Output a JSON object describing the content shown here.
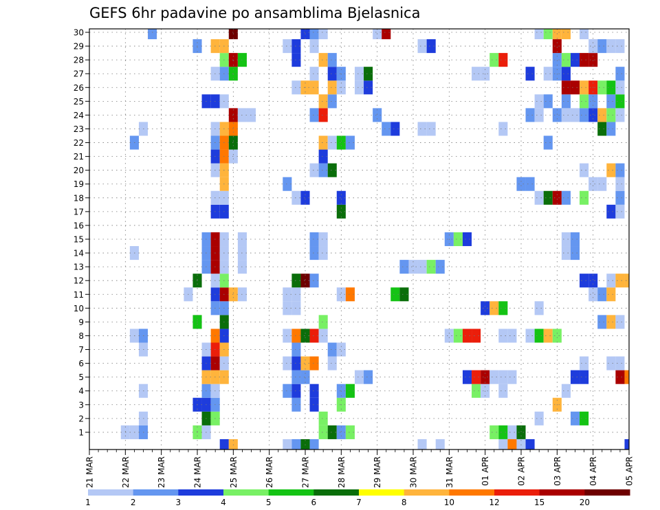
{
  "chart_data": {
    "type": "heatmap",
    "title": "GEFS 6hr padavine po ansamblima Bjelasnica",
    "xlabel": "",
    "ylabel": "",
    "x_tick_labels": [
      "21 MAR",
      "22 MAR",
      "23 MAR",
      "24 MAR",
      "25 MAR",
      "26 MAR",
      "27 MAR",
      "28 MAR",
      "29 MAR",
      "30 MAR",
      "31 MAR",
      "01 APR",
      "02 APR",
      "03 APR",
      "04 APR",
      "05 APR"
    ],
    "y_tick_labels": [
      "1",
      "2",
      "3",
      "4",
      "5",
      "6",
      "7",
      "8",
      "9",
      "10",
      "11",
      "12",
      "13",
      "14",
      "15",
      "16",
      "17",
      "18",
      "19",
      "20",
      "21",
      "22",
      "23",
      "24",
      "25",
      "26",
      "27",
      "28",
      "29",
      "30"
    ],
    "x_unit": "6-hour step (4 per day), step 0 = 21 MAR 00Z",
    "x_range": [
      0,
      60
    ],
    "y_range": [
      0,
      30
    ],
    "grid": true,
    "legend": {
      "placement": "bottom",
      "labels": [
        "1",
        "2",
        "3",
        "4",
        "5",
        "6",
        "7",
        "8",
        "10",
        "12",
        "15",
        "20"
      ],
      "bins": [
        {
          "min": 1,
          "max": 2,
          "color": "#b4c8f5"
        },
        {
          "min": 2,
          "max": 3,
          "color": "#6496f0"
        },
        {
          "min": 3,
          "max": 4,
          "color": "#1e3cdc"
        },
        {
          "min": 4,
          "max": 5,
          "color": "#78f064"
        },
        {
          "min": 5,
          "max": 6,
          "color": "#14c314"
        },
        {
          "min": 6,
          "max": 7,
          "color": "#0a6e0a"
        },
        {
          "min": 7,
          "max": 8,
          "color": "#ffff00"
        },
        {
          "min": 8,
          "max": 10,
          "color": "#ffb43c"
        },
        {
          "min": 10,
          "max": 12,
          "color": "#ff7800"
        },
        {
          "min": 12,
          "max": 15,
          "color": "#eb1e0a"
        },
        {
          "min": 15,
          "max": 20,
          "color": "#aa0000"
        },
        {
          "min": 20,
          "max": null,
          "color": "#6e0000"
        }
      ]
    },
    "cells": [
      [
        4,
        1,
        1
      ],
      [
        5,
        1,
        1
      ],
      [
        6,
        1,
        2
      ],
      [
        12,
        1,
        4
      ],
      [
        13,
        1,
        1
      ],
      [
        26,
        1,
        4
      ],
      [
        27,
        1,
        6
      ],
      [
        28,
        1,
        2
      ],
      [
        29,
        1,
        4
      ],
      [
        45,
        1,
        4
      ],
      [
        46,
        1,
        5
      ],
      [
        47,
        1,
        1
      ],
      [
        48,
        1,
        6
      ],
      [
        6,
        2,
        1
      ],
      [
        13,
        2,
        6
      ],
      [
        14,
        2,
        4
      ],
      [
        26,
        2,
        4
      ],
      [
        50,
        2,
        1
      ],
      [
        54,
        2,
        2
      ],
      [
        55,
        2,
        5
      ],
      [
        12,
        3,
        3
      ],
      [
        13,
        3,
        3
      ],
      [
        14,
        3,
        2
      ],
      [
        23,
        3,
        2
      ],
      [
        25,
        3,
        3
      ],
      [
        28,
        3,
        4
      ],
      [
        52,
        3,
        8
      ],
      [
        6,
        4,
        1
      ],
      [
        13,
        4,
        2
      ],
      [
        14,
        4,
        1
      ],
      [
        22,
        4,
        2
      ],
      [
        23,
        4,
        3
      ],
      [
        25,
        4,
        3
      ],
      [
        28,
        4,
        2
      ],
      [
        29,
        4,
        5
      ],
      [
        43,
        4,
        4
      ],
      [
        44,
        4,
        1
      ],
      [
        46,
        4,
        1
      ],
      [
        53,
        4,
        1
      ],
      [
        13,
        5,
        9
      ],
      [
        14,
        5,
        9
      ],
      [
        15,
        5,
        9
      ],
      [
        23,
        5,
        2
      ],
      [
        24,
        5,
        2
      ],
      [
        30,
        5,
        1
      ],
      [
        31,
        5,
        2
      ],
      [
        42,
        5,
        3
      ],
      [
        43,
        5,
        12
      ],
      [
        44,
        5,
        15
      ],
      [
        45,
        5,
        1
      ],
      [
        46,
        5,
        1
      ],
      [
        47,
        5,
        1
      ],
      [
        54,
        5,
        3
      ],
      [
        55,
        5,
        3
      ],
      [
        59,
        5,
        15
      ],
      [
        60,
        5,
        10
      ],
      [
        13,
        6,
        3
      ],
      [
        14,
        6,
        15
      ],
      [
        15,
        6,
        1
      ],
      [
        22,
        6,
        1
      ],
      [
        23,
        6,
        3
      ],
      [
        24,
        6,
        9
      ],
      [
        25,
        6,
        10
      ],
      [
        27,
        6,
        1
      ],
      [
        55,
        6,
        1
      ],
      [
        58,
        6,
        1
      ],
      [
        59,
        6,
        1
      ],
      [
        6,
        7,
        1
      ],
      [
        13,
        7,
        1
      ],
      [
        14,
        7,
        12
      ],
      [
        15,
        7,
        8
      ],
      [
        23,
        7,
        2
      ],
      [
        27,
        7,
        2
      ],
      [
        28,
        7,
        1
      ],
      [
        5,
        8,
        1
      ],
      [
        6,
        8,
        2
      ],
      [
        14,
        8,
        10
      ],
      [
        15,
        8,
        3
      ],
      [
        22,
        8,
        1
      ],
      [
        23,
        8,
        10
      ],
      [
        24,
        8,
        6
      ],
      [
        25,
        8,
        12
      ],
      [
        26,
        8,
        1
      ],
      [
        40,
        8,
        1
      ],
      [
        41,
        8,
        4
      ],
      [
        42,
        8,
        12
      ],
      [
        43,
        8,
        12
      ],
      [
        46,
        8,
        1
      ],
      [
        47,
        8,
        1
      ],
      [
        49,
        8,
        1
      ],
      [
        50,
        8,
        5
      ],
      [
        51,
        8,
        9
      ],
      [
        52,
        8,
        4
      ],
      [
        12,
        9,
        5
      ],
      [
        15,
        9,
        6
      ],
      [
        26,
        9,
        4
      ],
      [
        57,
        9,
        2
      ],
      [
        58,
        9,
        8
      ],
      [
        59,
        9,
        1
      ],
      [
        14,
        10,
        2
      ],
      [
        15,
        10,
        2
      ],
      [
        22,
        10,
        1
      ],
      [
        23,
        10,
        1
      ],
      [
        44,
        10,
        3
      ],
      [
        45,
        10,
        9
      ],
      [
        46,
        10,
        5
      ],
      [
        50,
        10,
        1
      ],
      [
        11,
        11,
        1
      ],
      [
        14,
        11,
        3
      ],
      [
        15,
        11,
        15
      ],
      [
        16,
        11,
        9
      ],
      [
        17,
        11,
        1
      ],
      [
        22,
        11,
        1
      ],
      [
        23,
        11,
        1
      ],
      [
        28,
        11,
        1
      ],
      [
        29,
        11,
        10
      ],
      [
        34,
        11,
        5
      ],
      [
        35,
        11,
        6
      ],
      [
        56,
        11,
        1
      ],
      [
        57,
        11,
        2
      ],
      [
        58,
        11,
        8
      ],
      [
        12,
        12,
        6
      ],
      [
        14,
        12,
        1
      ],
      [
        15,
        12,
        4
      ],
      [
        23,
        12,
        6
      ],
      [
        24,
        12,
        20
      ],
      [
        25,
        12,
        2
      ],
      [
        55,
        12,
        3
      ],
      [
        56,
        12,
        3
      ],
      [
        58,
        12,
        1
      ],
      [
        59,
        12,
        9
      ],
      [
        60,
        12,
        8
      ],
      [
        13,
        13,
        2
      ],
      [
        14,
        13,
        15
      ],
      [
        15,
        13,
        1
      ],
      [
        17,
        13,
        1
      ],
      [
        35,
        13,
        2
      ],
      [
        36,
        13,
        1
      ],
      [
        37,
        13,
        1
      ],
      [
        38,
        13,
        4
      ],
      [
        39,
        13,
        2
      ],
      [
        5,
        14,
        1
      ],
      [
        13,
        14,
        2
      ],
      [
        14,
        14,
        15
      ],
      [
        15,
        14,
        1
      ],
      [
        17,
        14,
        1
      ],
      [
        25,
        14,
        2
      ],
      [
        26,
        14,
        1
      ],
      [
        53,
        14,
        1
      ],
      [
        54,
        14,
        2
      ],
      [
        13,
        15,
        2
      ],
      [
        14,
        15,
        15
      ],
      [
        15,
        15,
        1
      ],
      [
        17,
        15,
        1
      ],
      [
        25,
        15,
        2
      ],
      [
        26,
        15,
        1
      ],
      [
        40,
        15,
        2
      ],
      [
        41,
        15,
        4
      ],
      [
        42,
        15,
        3
      ],
      [
        53,
        15,
        1
      ],
      [
        54,
        15,
        2
      ],
      [
        14,
        17,
        3
      ],
      [
        15,
        17,
        3
      ],
      [
        28,
        17,
        6
      ],
      [
        58,
        17,
        3
      ],
      [
        59,
        17,
        1
      ],
      [
        14,
        18,
        1
      ],
      [
        15,
        18,
        1
      ],
      [
        23,
        18,
        1
      ],
      [
        24,
        18,
        3
      ],
      [
        28,
        18,
        3
      ],
      [
        50,
        18,
        1
      ],
      [
        51,
        18,
        6
      ],
      [
        52,
        18,
        15
      ],
      [
        53,
        18,
        2
      ],
      [
        55,
        18,
        4
      ],
      [
        59,
        18,
        2
      ],
      [
        15,
        19,
        9
      ],
      [
        22,
        19,
        2
      ],
      [
        48,
        19,
        2
      ],
      [
        49,
        19,
        2
      ],
      [
        56,
        19,
        1
      ],
      [
        57,
        19,
        1
      ],
      [
        59,
        19,
        1
      ],
      [
        14,
        20,
        1
      ],
      [
        15,
        20,
        9
      ],
      [
        25,
        20,
        1
      ],
      [
        26,
        20,
        2
      ],
      [
        27,
        20,
        6
      ],
      [
        55,
        20,
        1
      ],
      [
        58,
        20,
        9
      ],
      [
        59,
        20,
        2
      ],
      [
        14,
        21,
        3
      ],
      [
        15,
        21,
        10
      ],
      [
        16,
        21,
        1
      ],
      [
        26,
        21,
        3
      ],
      [
        5,
        22,
        2
      ],
      [
        14,
        22,
        2
      ],
      [
        15,
        22,
        10
      ],
      [
        16,
        22,
        6
      ],
      [
        26,
        22,
        8
      ],
      [
        27,
        22,
        1
      ],
      [
        28,
        22,
        5
      ],
      [
        29,
        22,
        2
      ],
      [
        51,
        22,
        2
      ],
      [
        6,
        23,
        1
      ],
      [
        14,
        23,
        1
      ],
      [
        15,
        23,
        9
      ],
      [
        16,
        23,
        10
      ],
      [
        33,
        23,
        2
      ],
      [
        34,
        23,
        3
      ],
      [
        37,
        23,
        1
      ],
      [
        38,
        23,
        1
      ],
      [
        46,
        23,
        1
      ],
      [
        57,
        23,
        6
      ],
      [
        58,
        23,
        2
      ],
      [
        16,
        24,
        15
      ],
      [
        17,
        24,
        1
      ],
      [
        18,
        24,
        1
      ],
      [
        25,
        24,
        2
      ],
      [
        26,
        24,
        12
      ],
      [
        32,
        24,
        2
      ],
      [
        49,
        24,
        2
      ],
      [
        50,
        24,
        1
      ],
      [
        52,
        24,
        2
      ],
      [
        53,
        24,
        1
      ],
      [
        54,
        24,
        1
      ],
      [
        55,
        24,
        2
      ],
      [
        56,
        24,
        3
      ],
      [
        57,
        24,
        8
      ],
      [
        58,
        24,
        4
      ],
      [
        59,
        24,
        1
      ],
      [
        13,
        25,
        3
      ],
      [
        14,
        25,
        3
      ],
      [
        15,
        25,
        1
      ],
      [
        26,
        25,
        9
      ],
      [
        27,
        25,
        2
      ],
      [
        50,
        25,
        1
      ],
      [
        51,
        25,
        2
      ],
      [
        53,
        25,
        2
      ],
      [
        55,
        25,
        4
      ],
      [
        56,
        25,
        2
      ],
      [
        58,
        25,
        2
      ],
      [
        59,
        25,
        5
      ],
      [
        23,
        26,
        1
      ],
      [
        24,
        26,
        9
      ],
      [
        25,
        26,
        9
      ],
      [
        27,
        26,
        9
      ],
      [
        28,
        26,
        1
      ],
      [
        30,
        26,
        1
      ],
      [
        31,
        26,
        3
      ],
      [
        53,
        26,
        15
      ],
      [
        54,
        26,
        15
      ],
      [
        55,
        26,
        9
      ],
      [
        56,
        26,
        12
      ],
      [
        57,
        26,
        4
      ],
      [
        58,
        26,
        5
      ],
      [
        59,
        26,
        1
      ],
      [
        14,
        27,
        1
      ],
      [
        15,
        27,
        2
      ],
      [
        16,
        27,
        5
      ],
      [
        25,
        27,
        1
      ],
      [
        27,
        27,
        3
      ],
      [
        28,
        27,
        2
      ],
      [
        30,
        27,
        1
      ],
      [
        31,
        27,
        6
      ],
      [
        43,
        27,
        1
      ],
      [
        44,
        27,
        1
      ],
      [
        49,
        27,
        3
      ],
      [
        51,
        27,
        1
      ],
      [
        52,
        27,
        2
      ],
      [
        53,
        27,
        3
      ],
      [
        59,
        27,
        2
      ],
      [
        15,
        28,
        4
      ],
      [
        16,
        28,
        15
      ],
      [
        17,
        28,
        5
      ],
      [
        23,
        28,
        3
      ],
      [
        26,
        28,
        8
      ],
      [
        27,
        28,
        2
      ],
      [
        45,
        28,
        4
      ],
      [
        46,
        28,
        12
      ],
      [
        52,
        28,
        2
      ],
      [
        53,
        28,
        4
      ],
      [
        54,
        28,
        3
      ],
      [
        55,
        28,
        15
      ],
      [
        56,
        28,
        15
      ],
      [
        12,
        29,
        2
      ],
      [
        14,
        29,
        9
      ],
      [
        15,
        29,
        8
      ],
      [
        22,
        29,
        1
      ],
      [
        23,
        29,
        3
      ],
      [
        25,
        29,
        1
      ],
      [
        37,
        29,
        1
      ],
      [
        38,
        29,
        3
      ],
      [
        52,
        29,
        15
      ],
      [
        56,
        29,
        1
      ],
      [
        57,
        29,
        2
      ],
      [
        58,
        29,
        1
      ],
      [
        59,
        29,
        1
      ],
      [
        7,
        30,
        2
      ],
      [
        16,
        30,
        20
      ],
      [
        24,
        30,
        3
      ],
      [
        25,
        30,
        2
      ],
      [
        26,
        30,
        1
      ],
      [
        32,
        30,
        1
      ],
      [
        33,
        30,
        15
      ],
      [
        50,
        30,
        1
      ],
      [
        51,
        30,
        4
      ],
      [
        52,
        30,
        9
      ],
      [
        53,
        30,
        9
      ],
      [
        55,
        30,
        1
      ],
      [
        15,
        0,
        3
      ],
      [
        16,
        0,
        8
      ],
      [
        22,
        0,
        1
      ],
      [
        23,
        0,
        2
      ],
      [
        24,
        0,
        6
      ],
      [
        25,
        0,
        2
      ],
      [
        37,
        0,
        1
      ],
      [
        39,
        0,
        1
      ],
      [
        46,
        0,
        1
      ],
      [
        47,
        0,
        10
      ],
      [
        48,
        0,
        1
      ],
      [
        49,
        0,
        3
      ],
      [
        60,
        0,
        3
      ]
    ]
  }
}
